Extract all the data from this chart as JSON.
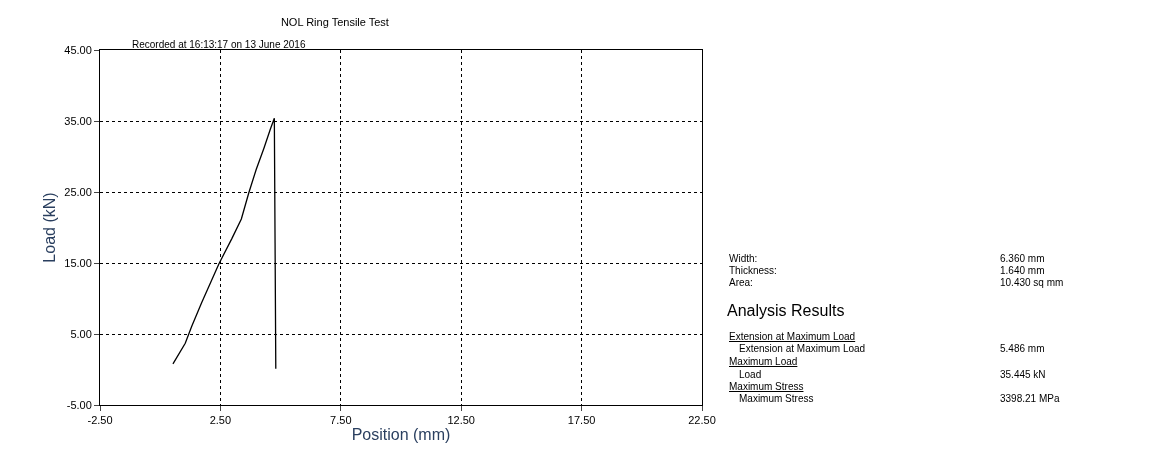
{
  "chart_data": {
    "type": "line",
    "title": "NOL Ring Tensile Test",
    "xlabel": "Position (mm)",
    "ylabel": "Load (kN)",
    "x": [
      0.53,
      1.04,
      1.31,
      1.72,
      2.44,
      2.97,
      3.37,
      3.68,
      3.99,
      4.3,
      4.58,
      4.74,
      4.77,
      4.8
    ],
    "series": [
      {
        "color": "#000000",
        "values": [
          0.8,
          3.7,
          6.1,
          9.4,
          14.9,
          18.4,
          21.2,
          24.9,
          28.2,
          31.1,
          33.9,
          35.4,
          17.8,
          0.1
        ]
      }
    ],
    "xlim": [
      -2.5,
      22.5
    ],
    "xticks": [
      {
        "value": -2.5,
        "label": "-2.50"
      },
      {
        "value": 2.5,
        "label": "2.50"
      },
      {
        "value": 7.5,
        "label": "7.50"
      },
      {
        "value": 12.5,
        "label": "12.50"
      },
      {
        "value": 17.5,
        "label": "17.50"
      },
      {
        "value": 22.5,
        "label": "22.50"
      }
    ],
    "ylim": [
      -5,
      45
    ],
    "yticks": [
      {
        "value": -5,
        "label": "-5.00"
      },
      {
        "value": 5,
        "label": "5.00"
      },
      {
        "value": 15,
        "label": "15.00"
      },
      {
        "value": 25,
        "label": "25.00"
      },
      {
        "value": 35,
        "label": "35.00"
      },
      {
        "value": 45,
        "label": "45.00"
      }
    ],
    "grid": true,
    "line_style": "solid",
    "annotations": [
      "Recorded at 16:13:17 on 13 June 2016",
      "Width:",
      "6.360 mm",
      "Thickness:",
      "1.640 mm",
      "Area:",
      "10.430 sq mm",
      "Analysis Results",
      "Extension at Maximum Load",
      "Extension at Maximum Load",
      "5.486 mm",
      "Maximum Load",
      "Load",
      "35.445 kN",
      "Maximum Stress",
      "Maximum Stress",
      "3398.21 MPa"
    ]
  }
}
